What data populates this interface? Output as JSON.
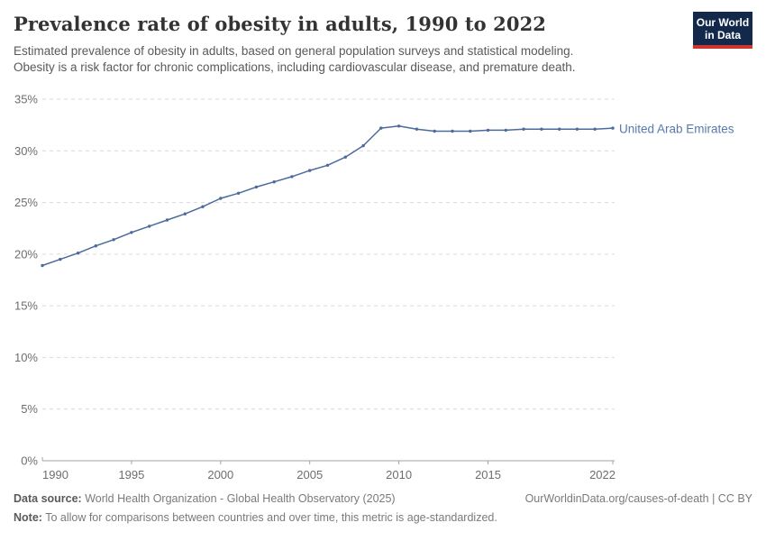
{
  "header": {
    "title": "Prevalence rate of obesity in adults, 1990 to 2022",
    "subtitle_line1": "Estimated prevalence of obesity in adults, based on general population surveys and statistical modeling.",
    "subtitle_line2": "Obesity is a risk factor for chronic complications, including cardiovascular disease, and premature death."
  },
  "logo": {
    "line1": "Our World",
    "line2": "in Data",
    "bg_color": "#12294b",
    "bar_color": "#d0342c"
  },
  "chart_data": {
    "type": "line",
    "title": "Prevalence rate of obesity in adults, 1990 to 2022",
    "xlabel": "",
    "ylabel": "",
    "xlim": [
      1990,
      2022
    ],
    "ylim": [
      0,
      35
    ],
    "x_ticks": [
      1990,
      1995,
      2000,
      2005,
      2010,
      2015,
      2022
    ],
    "y_ticks": [
      0,
      5,
      10,
      15,
      20,
      25,
      30,
      35
    ],
    "y_tick_labels": [
      "0%",
      "5%",
      "10%",
      "15%",
      "20%",
      "25%",
      "30%",
      "35%"
    ],
    "grid": "horizontal-dashed",
    "legend_position": "end-of-line",
    "series": [
      {
        "name": "United Arab Emirates",
        "color": "#4c6a9c",
        "x": [
          1990,
          1991,
          1992,
          1993,
          1994,
          1995,
          1996,
          1997,
          1998,
          1999,
          2000,
          2001,
          2002,
          2003,
          2004,
          2005,
          2006,
          2007,
          2008,
          2009,
          2010,
          2011,
          2012,
          2013,
          2014,
          2015,
          2016,
          2017,
          2018,
          2019,
          2020,
          2021,
          2022
        ],
        "values": [
          18.9,
          19.5,
          20.1,
          20.8,
          21.4,
          22.1,
          22.7,
          23.3,
          23.9,
          24.6,
          25.4,
          25.9,
          26.5,
          27.0,
          27.5,
          28.1,
          28.6,
          29.4,
          30.5,
          32.2,
          32.4,
          32.1,
          31.9,
          31.9,
          31.9,
          32.0,
          32.0,
          32.1,
          32.1,
          32.1,
          32.1,
          32.1,
          32.2
        ]
      }
    ]
  },
  "colors": {
    "line": "#4c6a9c",
    "legend_text": "#5879ab",
    "gridline": "#d9d9d9",
    "axis": "#a3a3a3",
    "tick_label": "#6e6e6e",
    "title_text": "#333333",
    "subtitle_text": "#595959",
    "footer_text": "#7a7a7a"
  },
  "footer": {
    "data_source_label": "Data source:",
    "data_source_value": "World Health Organization - Global Health Observatory (2025)",
    "note_label": "Note:",
    "note_value": "To allow for comparisons between countries and over time, this metric is age-standardized.",
    "attribution": "OurWorldinData.org/causes-of-death | CC BY"
  }
}
